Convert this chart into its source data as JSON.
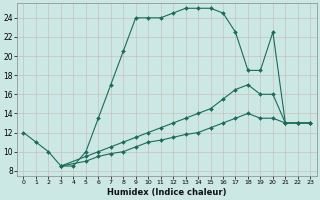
{
  "xlabel": "Humidex (Indice chaleur)",
  "bg_color": "#cce8e4",
  "grid_color_major": "#b8d8d4",
  "grid_color_minor": "#b8d8d4",
  "line_color": "#1a6b5a",
  "xlim": [
    -0.5,
    23.5
  ],
  "ylim": [
    7.5,
    25.5
  ],
  "xticks": [
    0,
    1,
    2,
    3,
    4,
    5,
    6,
    7,
    8,
    9,
    10,
    11,
    12,
    13,
    14,
    15,
    16,
    17,
    18,
    19,
    20,
    21,
    22,
    23
  ],
  "yticks": [
    8,
    10,
    12,
    14,
    16,
    18,
    20,
    22,
    24
  ],
  "line1_x": [
    0,
    1,
    2,
    3,
    4,
    5,
    6,
    7,
    8,
    9,
    10,
    11,
    12,
    13,
    14,
    15,
    16,
    17,
    18,
    19,
    20,
    21,
    22,
    23
  ],
  "line1_y": [
    12,
    11,
    10,
    8.5,
    8.5,
    10,
    13.5,
    17,
    20.5,
    24,
    24,
    24,
    24.5,
    25,
    25,
    25,
    24.5,
    22.5,
    18.5,
    18.5,
    22.5,
    13,
    13,
    13
  ],
  "line2_x": [
    3,
    5,
    6,
    7,
    8,
    9,
    10,
    11,
    12,
    13,
    14,
    15,
    16,
    17,
    18,
    19,
    20,
    21,
    22,
    23
  ],
  "line2_y": [
    8.5,
    9.5,
    10,
    10.5,
    11,
    11.5,
    12,
    12.5,
    13,
    13.5,
    14,
    14.5,
    15.5,
    16.5,
    17,
    16,
    16,
    13,
    13,
    13
  ],
  "line3_x": [
    3,
    5,
    6,
    7,
    8,
    9,
    10,
    11,
    12,
    13,
    14,
    15,
    16,
    17,
    18,
    19,
    20,
    21,
    22,
    23
  ],
  "line3_y": [
    8.5,
    9.0,
    9.5,
    9.8,
    10,
    10.5,
    11,
    11.2,
    11.5,
    11.8,
    12,
    12.5,
    13,
    13.5,
    14,
    13.5,
    13.5,
    13,
    13,
    13
  ]
}
